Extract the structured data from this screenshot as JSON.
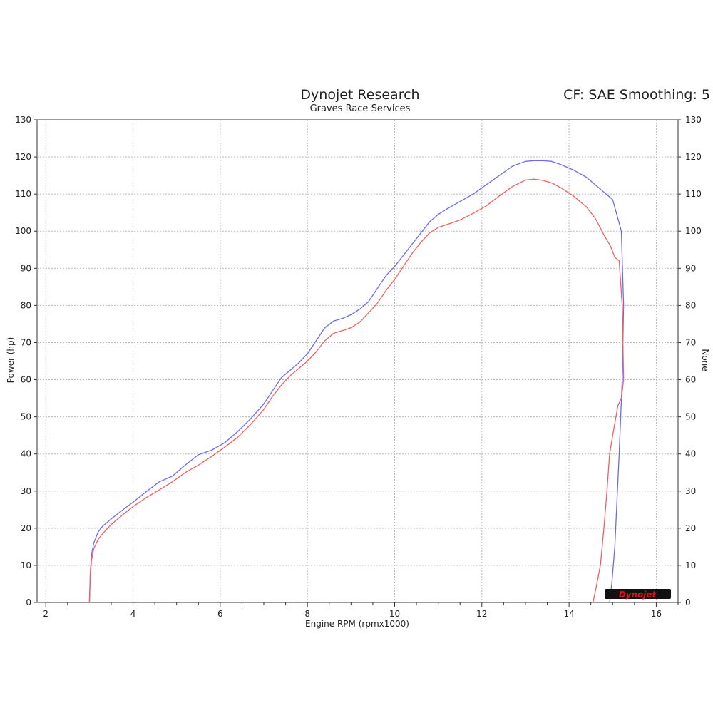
{
  "header": {
    "title": "Dynojet Research",
    "subtitle": "Graves Race Services",
    "cf_label": "CF: SAE Smoothing: 5"
  },
  "logo": {
    "text": "Dynojet",
    "color": "#e0121b"
  },
  "chart_data": {
    "type": "line",
    "title": "Dynojet Research",
    "subtitle": "Graves Race Services",
    "xlabel": "Engine RPM (rpmx1000)",
    "ylabel": "Power (hp)",
    "ylabel_right": "None",
    "xlim": [
      1.8,
      16.5
    ],
    "ylim": [
      0,
      130
    ],
    "x_ticks": [
      2,
      4,
      6,
      8,
      10,
      12,
      14,
      16
    ],
    "x_minor_ticks": [
      2.5,
      3.5,
      4.5,
      5,
      5.5,
      6.5,
      7,
      7.5,
      8.5,
      9,
      9.5,
      10.5,
      11,
      11.5,
      12.5,
      13,
      13.5,
      14.5,
      15,
      15.5,
      16.5
    ],
    "x_tick_labels": [
      "2",
      "4",
      "6",
      "8",
      "10",
      "12",
      "14",
      "16"
    ],
    "y_ticks": [
      0,
      10,
      20,
      30,
      40,
      50,
      60,
      70,
      80,
      90,
      100,
      110,
      120,
      130
    ],
    "y_tick_labels": [
      "0",
      "10",
      "20",
      "30",
      "40",
      "50",
      "60",
      "70",
      "80",
      "90",
      "100",
      "110",
      "120",
      "130"
    ],
    "grid": true,
    "series": [
      {
        "color": "#6b6bf0",
        "x": [
          3.0,
          3.02,
          3.05,
          3.1,
          3.2,
          3.3,
          3.5,
          3.75,
          4.0,
          4.3,
          4.6,
          4.9,
          5.2,
          5.5,
          5.8,
          6.1,
          6.4,
          6.7,
          7.0,
          7.2,
          7.4,
          7.6,
          7.8,
          8.0,
          8.2,
          8.4,
          8.6,
          8.8,
          9.0,
          9.2,
          9.4,
          9.6,
          9.8,
          10.0,
          10.2,
          10.4,
          10.6,
          10.8,
          11.0,
          11.2,
          11.5,
          11.8,
          12.1,
          12.4,
          12.7,
          13.0,
          13.2,
          13.4,
          13.6,
          13.8,
          14.1,
          14.4,
          14.7,
          15.0,
          15.2,
          15.25,
          15.22,
          15.15,
          15.05,
          14.98,
          14.93
        ],
        "y": [
          0,
          8,
          13,
          16,
          19,
          20.5,
          22.5,
          24.8,
          27,
          29.8,
          32.5,
          34,
          37,
          39.8,
          41,
          43,
          46,
          49.5,
          53.5,
          57,
          60.5,
          62.5,
          64.5,
          67,
          70.5,
          74,
          75.8,
          76.5,
          77.5,
          79,
          81,
          84.5,
          88,
          90.5,
          93.5,
          96.5,
          99.5,
          102.5,
          104.5,
          106,
          108,
          110,
          112.5,
          115,
          117.5,
          118.8,
          119,
          119,
          118.8,
          118,
          116.5,
          114.5,
          111.5,
          108.5,
          100,
          80,
          60,
          40,
          15,
          5,
          0
        ]
      },
      {
        "color": "#f06060",
        "x": [
          3.0,
          3.02,
          3.05,
          3.1,
          3.2,
          3.3,
          3.5,
          3.75,
          4.0,
          4.3,
          4.6,
          4.9,
          5.2,
          5.5,
          5.8,
          6.1,
          6.4,
          6.7,
          7.0,
          7.2,
          7.4,
          7.6,
          7.8,
          8.0,
          8.2,
          8.4,
          8.6,
          8.8,
          9.0,
          9.2,
          9.4,
          9.6,
          9.8,
          10.0,
          10.2,
          10.4,
          10.6,
          10.8,
          11.0,
          11.2,
          11.5,
          11.8,
          12.1,
          12.4,
          12.7,
          13.0,
          13.2,
          13.4,
          13.6,
          13.8,
          14.1,
          14.4,
          14.6,
          14.8,
          14.95,
          15.05,
          15.15,
          15.22,
          15.25,
          15.2,
          15.12,
          15.0,
          14.93,
          14.87,
          14.8,
          14.72,
          14.62,
          14.55
        ],
        "y": [
          0,
          7,
          11.5,
          14.5,
          17,
          18.5,
          21,
          23.5,
          25.8,
          28.2,
          30.3,
          32.5,
          35,
          37,
          39.3,
          41.8,
          44.5,
          48,
          52,
          55.5,
          58.5,
          61,
          63,
          65,
          67.5,
          70.5,
          72.5,
          73.2,
          74,
          75.5,
          78,
          80.5,
          84,
          87,
          90.5,
          94,
          97,
          99.5,
          101,
          101.8,
          103,
          104.8,
          106.8,
          109.5,
          112,
          113.8,
          114,
          113.7,
          113,
          111.8,
          109.5,
          106.5,
          103.5,
          99,
          96,
          93,
          92,
          80,
          60,
          55,
          53,
          45,
          40,
          30,
          20,
          10,
          4,
          0
        ]
      }
    ]
  }
}
